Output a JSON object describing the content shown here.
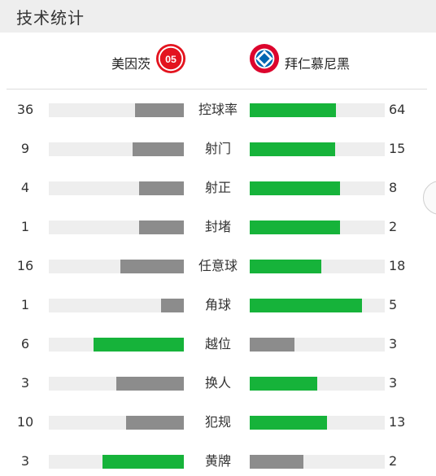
{
  "header": {
    "title": "技术统计"
  },
  "teams": {
    "home": {
      "name": "美因茨",
      "logo_icon": "mainz-crest-icon"
    },
    "away": {
      "name": "拜仁慕尼黑",
      "logo_icon": "bayern-crest-icon"
    }
  },
  "colors": {
    "leader": "#16b33a",
    "trailer": "#8c8c8c",
    "track": "#eeeeee",
    "mainz_red": "#e3141f",
    "bayern_red": "#dc052d",
    "bayern_blue": "#0066b2"
  },
  "stats": [
    {
      "label": "控球率",
      "home": "36",
      "away": "64",
      "home_ratio": 0.36,
      "away_ratio": 0.64
    },
    {
      "label": "射门",
      "home": "9",
      "away": "15",
      "home_ratio": 0.38,
      "away_ratio": 0.63
    },
    {
      "label": "射正",
      "home": "4",
      "away": "8",
      "home_ratio": 0.33,
      "away_ratio": 0.67
    },
    {
      "label": "封堵",
      "home": "1",
      "away": "2",
      "home_ratio": 0.33,
      "away_ratio": 0.67
    },
    {
      "label": "任意球",
      "home": "16",
      "away": "18",
      "home_ratio": 0.47,
      "away_ratio": 0.53
    },
    {
      "label": "角球",
      "home": "1",
      "away": "5",
      "home_ratio": 0.17,
      "away_ratio": 0.83
    },
    {
      "label": "越位",
      "home": "6",
      "away": "3",
      "home_ratio": 0.67,
      "away_ratio": 0.33
    },
    {
      "label": "换人",
      "home": "3",
      "away": "3",
      "home_ratio": 0.5,
      "away_ratio": 0.5
    },
    {
      "label": "犯规",
      "home": "10",
      "away": "13",
      "home_ratio": 0.43,
      "away_ratio": 0.57
    },
    {
      "label": "黄牌",
      "home": "3",
      "away": "2",
      "home_ratio": 0.6,
      "away_ratio": 0.4
    }
  ]
}
